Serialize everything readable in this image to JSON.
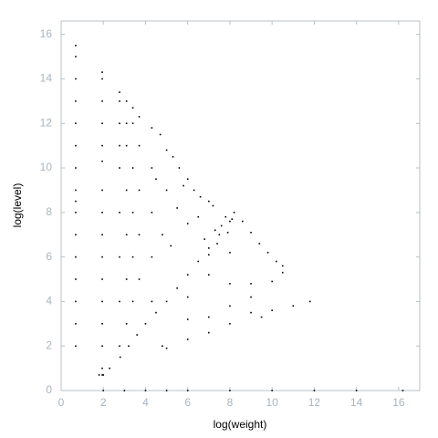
{
  "chart_data": {
    "type": "scatter",
    "x_label": "log(weight)",
    "y_label": "log(level)",
    "color": "#000000",
    "xlim": [
      0,
      17
    ],
    "ylim": [
      0,
      16.6
    ],
    "xticks": [
      0,
      2,
      4,
      6,
      8,
      10,
      12,
      14,
      16
    ],
    "yticks": [
      0,
      2,
      4,
      6,
      8,
      10,
      12,
      14,
      16
    ],
    "x": [
      0.69,
      0.69,
      0.69,
      0.69,
      0.69,
      0.69,
      0.69,
      0.69,
      0.69,
      0.69,
      0.69,
      0.69,
      0.69,
      0.69,
      0.69,
      0.69,
      1.95,
      1.95,
      1.95,
      1.95,
      1.95,
      1.95,
      1.95,
      1.95,
      1.95,
      1.95,
      1.95,
      1.95,
      1.95,
      1.95,
      1.95,
      1.95,
      2.77,
      2.77,
      2.77,
      2.77,
      2.77,
      2.77,
      2.77,
      2.77,
      2.77,
      3.1,
      3.1,
      3.1,
      3.1,
      3.1,
      3.1,
      3.1,
      3.4,
      3.4,
      3.4,
      3.4,
      3.4,
      3.4,
      3.7,
      3.7,
      3.7,
      3.7,
      3.7,
      4.3,
      4.3,
      4.3,
      4.3,
      4.3,
      4.7,
      5,
      5.3,
      5.6,
      6,
      6.3,
      6.6,
      7,
      5,
      5.5,
      6,
      4.8,
      5.2,
      6.5,
      7.2,
      4.5,
      5.8,
      2.3,
      2.8,
      3.2,
      3.6,
      4,
      4.5,
      5,
      5.5,
      6,
      6.5,
      7,
      7.5,
      8,
      8.2,
      7.8,
      7.3,
      6.8,
      7.6,
      8.1,
      7.9,
      7.4,
      7,
      6,
      7,
      8,
      8.6,
      9,
      9.4,
      9.8,
      10.2,
      10.5,
      8,
      9,
      10,
      10.5,
      6,
      7,
      8,
      9,
      9,
      10,
      11,
      11.8,
      9.5,
      8,
      7,
      6,
      5,
      4.8,
      1.8,
      2,
      2,
      3,
      4,
      5,
      6,
      8,
      10,
      12,
      14,
      16.2
    ],
    "values": [
      2,
      3,
      4,
      5,
      6,
      7,
      8,
      8.5,
      9,
      10,
      11,
      12,
      13,
      14,
      15,
      15.5,
      0.7,
      1,
      2,
      3,
      4,
      5,
      6,
      7,
      8,
      9,
      10.3,
      11,
      12,
      13,
      14,
      14.3,
      2,
      4,
      6,
      8,
      10,
      11,
      12,
      13,
      13.4,
      3,
      5,
      7,
      9,
      11,
      12,
      13,
      4,
      6,
      8,
      10,
      12,
      12.7,
      5,
      7,
      9,
      11,
      12.3,
      4,
      6,
      8,
      10,
      11.8,
      11.5,
      10.8,
      10.5,
      10,
      9.5,
      9,
      8.7,
      8.5,
      9,
      8.2,
      7.5,
      7,
      6.5,
      7.8,
      8.3,
      9.5,
      9.2,
      1,
      1.5,
      2,
      2.5,
      3,
      3.5,
      4,
      4.6,
      5.2,
      5.8,
      6.4,
      7,
      7.6,
      8,
      7.8,
      7.2,
      6.8,
      7.4,
      7.7,
      7.1,
      6.6,
      6.1,
      4.2,
      5.2,
      6.2,
      7.6,
      7.1,
      6.6,
      6.2,
      5.8,
      5.6,
      4.8,
      4.8,
      4.9,
      5.3,
      3.2,
      3.3,
      3.8,
      4.2,
      3.5,
      3.6,
      3.8,
      4,
      3.3,
      3,
      2.6,
      2.3,
      1.9,
      2,
      0.7,
      0.7,
      0,
      0,
      0,
      0,
      0,
      0,
      0,
      0,
      0,
      0
    ]
  }
}
